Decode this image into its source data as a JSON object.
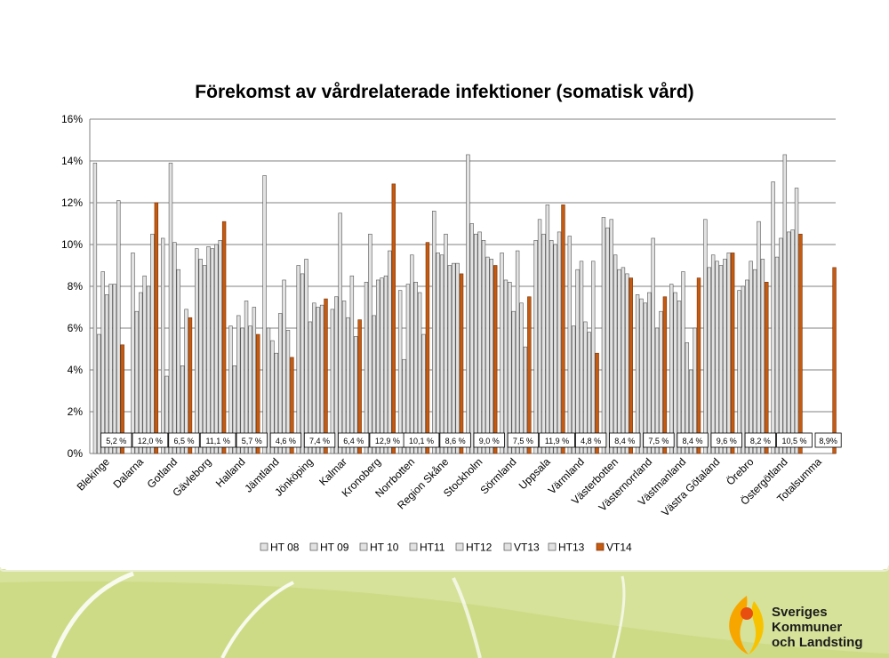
{
  "logo": {
    "text": "Sveriges\nKommuner\noch Landsting",
    "icon": "skl-logo-icon"
  },
  "colors": {
    "hist": "#e2e2e2",
    "hist_stroke": "#555555",
    "vt14": "#c55a11",
    "vt14_stroke": "#7a3306",
    "grid": "#808080"
  },
  "chart_data": {
    "type": "bar",
    "title": "Förekomst av vårdrelaterade infektioner (somatisk vård)",
    "xlabel": "",
    "ylabel": "",
    "ylim": [
      0,
      0.16
    ],
    "yticks": [
      "0%",
      "2%",
      "4%",
      "6%",
      "8%",
      "10%",
      "12%",
      "14%",
      "16%"
    ],
    "grid": true,
    "legend_position": "bottom",
    "categories": [
      "Blekinge",
      "Dalarna",
      "Gotland",
      "Gävleborg",
      "Halland",
      "Jämtland",
      "Jönköping",
      "Kalmar",
      "Kronoberg",
      "Norrbotten",
      "Region Skåne",
      "Stockholm",
      "Sörmland",
      "Uppsala",
      "Värmland",
      "Västerbotten",
      "Västernorrland",
      "Västmanland",
      "Västra Götaland",
      "Örebro",
      "Östergötland",
      "Totalsumma"
    ],
    "series": [
      {
        "name": "HT 08",
        "values": [
          13.9,
          null,
          10.3,
          9.8,
          6.1,
          13.3,
          9.0,
          6.9,
          8.2,
          7.8,
          11.6,
          14.3,
          9.6,
          10.2,
          10.4,
          11.3,
          7.6,
          8.1,
          11.2,
          7.8,
          13.0,
          null
        ]
      },
      {
        "name": "HT 09",
        "values": [
          5.7,
          9.6,
          3.7,
          9.3,
          4.2,
          6.0,
          8.6,
          7.5,
          10.5,
          4.5,
          9.6,
          11.0,
          8.3,
          11.2,
          6.1,
          10.8,
          7.4,
          7.7,
          8.9,
          8.0,
          9.4,
          null
        ]
      },
      {
        "name": "HT 10",
        "values": [
          8.7,
          6.8,
          13.9,
          9.0,
          6.6,
          5.4,
          9.3,
          11.5,
          6.6,
          8.1,
          9.5,
          10.5,
          8.2,
          10.5,
          8.8,
          11.2,
          7.2,
          7.3,
          9.5,
          8.3,
          10.3,
          null
        ]
      },
      {
        "name": "HT11",
        "values": [
          7.6,
          7.7,
          10.1,
          9.9,
          6.0,
          4.8,
          6.3,
          7.3,
          8.3,
          9.5,
          10.5,
          10.6,
          6.8,
          11.9,
          9.2,
          9.5,
          7.7,
          8.7,
          9.2,
          9.2,
          14.3,
          null
        ]
      },
      {
        "name": "HT12",
        "values": [
          8.1,
          8.5,
          8.8,
          9.8,
          7.3,
          6.7,
          7.2,
          6.5,
          8.4,
          8.2,
          9.0,
          10.2,
          9.7,
          10.2,
          6.3,
          8.8,
          10.3,
          5.3,
          9.0,
          8.8,
          10.6,
          null
        ]
      },
      {
        "name": "VT13",
        "values": [
          8.1,
          8.0,
          4.2,
          10.0,
          6.1,
          8.3,
          7.0,
          8.5,
          8.5,
          7.7,
          9.1,
          9.4,
          7.2,
          10.0,
          5.8,
          8.9,
          6.0,
          4.0,
          9.3,
          11.1,
          10.7,
          null
        ]
      },
      {
        "name": "HT13",
        "values": [
          12.1,
          10.5,
          6.9,
          10.2,
          7.0,
          5.9,
          7.1,
          5.6,
          9.7,
          5.7,
          9.1,
          9.3,
          5.1,
          10.6,
          9.2,
          8.6,
          6.8,
          6.0,
          9.6,
          9.3,
          12.7,
          null
        ]
      },
      {
        "name": "VT14",
        "values": [
          5.2,
          12.0,
          6.5,
          11.1,
          5.7,
          4.6,
          7.4,
          6.4,
          12.9,
          10.1,
          8.6,
          9.0,
          7.5,
          11.9,
          4.8,
          8.4,
          7.5,
          8.4,
          9.6,
          8.2,
          10.5,
          8.9
        ]
      }
    ],
    "data_labels": [
      "5,2 %",
      "12,0 %",
      "6,5 %",
      "11,1 %",
      "5,7 %",
      "4,6 %",
      "7,4 %",
      "6,4 %",
      "12,9 %",
      "10,1 %",
      "8,6 %",
      "9,0 %",
      "7,5 %",
      "11,9 %",
      "4,8 %",
      "8,4 %",
      "7,5 %",
      "8,4 %",
      "9,6 %",
      "8,2 %",
      "10,5 %",
      "8,9%"
    ]
  }
}
